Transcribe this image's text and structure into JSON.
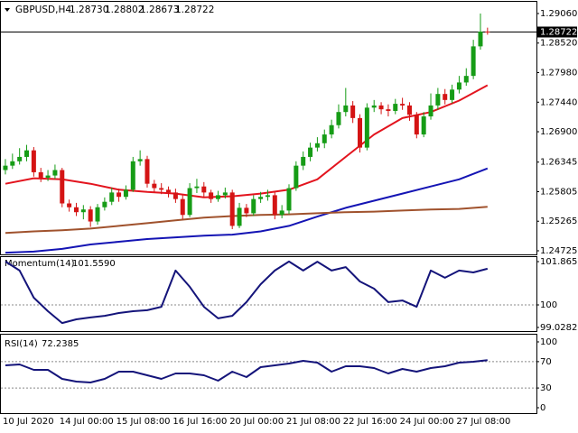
{
  "chart_data": [
    {
      "type": "candlestick",
      "title": "GBPUSD,H4",
      "ohlc_labels": [
        "1.28730",
        "1.28802",
        "1.28673",
        "1.28722"
      ],
      "categories": [
        "10 Jul 2020",
        null,
        null,
        null,
        null,
        null,
        null,
        null,
        "14 Jul 00:00",
        null,
        null,
        null,
        null,
        null,
        null,
        null,
        "15 Jul 08:00",
        null,
        null,
        null,
        null,
        null,
        null,
        null,
        "16 Jul 16:00",
        null,
        null,
        null,
        null,
        null,
        null,
        null,
        "20 Jul 00:00",
        null,
        null,
        null,
        null,
        null,
        null,
        null,
        "21 Jul 08:00",
        null,
        null,
        null,
        null,
        null,
        null,
        null,
        "22 Jul 16:00",
        null,
        null,
        null,
        null,
        null,
        null,
        null,
        "24 Jul 00:00",
        null,
        null,
        null,
        null,
        null,
        null,
        null,
        "27 Jul 08:00",
        null,
        null,
        null,
        null
      ],
      "open": [
        1.262,
        1.2628,
        1.2636,
        1.2644,
        1.2656,
        1.2616,
        1.2606,
        1.261,
        1.262,
        1.2559,
        1.2552,
        1.2543,
        1.2548,
        1.2526,
        1.2552,
        1.2562,
        1.2579,
        1.2571,
        1.2584,
        1.2636,
        1.264,
        1.2595,
        1.2587,
        1.2584,
        1.2579,
        1.2567,
        1.2538,
        1.2587,
        1.259,
        1.2579,
        1.2567,
        1.2574,
        1.2579,
        1.2518,
        1.2551,
        1.2541,
        1.2567,
        1.2571,
        1.2574,
        1.2538,
        1.2546,
        1.2587,
        1.2628,
        1.2644,
        1.2661,
        1.2669,
        1.2685,
        1.2702,
        1.2726,
        1.2738,
        1.2715,
        1.2661,
        1.2734,
        1.2738,
        1.2731,
        1.2728,
        1.2741,
        1.2738,
        1.2721,
        1.2685,
        1.2718,
        1.2738,
        1.2759,
        1.2748,
        1.2767,
        1.278,
        1.2792,
        1.2846,
        1.2873
      ],
      "high": [
        1.264,
        1.265,
        1.266,
        1.2666,
        1.2662,
        1.2624,
        1.262,
        1.263,
        1.2624,
        1.2566,
        1.256,
        1.2556,
        1.2554,
        1.2558,
        1.257,
        1.2588,
        1.2586,
        1.2592,
        1.2644,
        1.2656,
        1.2646,
        1.2602,
        1.2596,
        1.259,
        1.2586,
        1.2574,
        1.2596,
        1.2604,
        1.2598,
        1.2584,
        1.2582,
        1.2588,
        1.2584,
        1.256,
        1.2558,
        1.2574,
        1.258,
        1.2584,
        1.258,
        1.2556,
        1.2594,
        1.2636,
        1.2654,
        1.267,
        1.268,
        1.2694,
        1.2712,
        1.274,
        1.277,
        1.2746,
        1.2722,
        1.2742,
        1.2748,
        1.2744,
        1.274,
        1.275,
        1.2752,
        1.2744,
        1.2726,
        1.2726,
        1.276,
        1.277,
        1.2768,
        1.2776,
        1.2792,
        1.2806,
        1.2858,
        1.2906,
        1.28802
      ],
      "low": [
        1.2612,
        1.2622,
        1.263,
        1.2636,
        1.2608,
        1.2598,
        1.26,
        1.2604,
        1.2552,
        1.2544,
        1.2536,
        1.253,
        1.2516,
        1.252,
        1.2546,
        1.2556,
        1.2562,
        1.2566,
        1.258,
        1.2628,
        1.2588,
        1.258,
        1.2576,
        1.257,
        1.256,
        1.253,
        1.2534,
        1.2578,
        1.257,
        1.256,
        1.2562,
        1.2568,
        1.2512,
        1.2514,
        1.2534,
        1.2536,
        1.256,
        1.2564,
        1.253,
        1.2532,
        1.254,
        1.2582,
        1.262,
        1.2636,
        1.2654,
        1.266,
        1.2678,
        1.2696,
        1.2718,
        1.2706,
        1.2652,
        1.2656,
        1.2726,
        1.2722,
        1.2718,
        1.2722,
        1.273,
        1.271,
        1.2678,
        1.268,
        1.2712,
        1.273,
        1.274,
        1.2742,
        1.276,
        1.2774,
        1.2786,
        1.284,
        1.28673
      ],
      "close": [
        1.2628,
        1.2636,
        1.2644,
        1.2656,
        1.2616,
        1.2606,
        1.261,
        1.262,
        1.2559,
        1.2552,
        1.2543,
        1.2548,
        1.2526,
        1.2552,
        1.2562,
        1.2579,
        1.2571,
        1.2584,
        1.2636,
        1.264,
        1.2595,
        1.2587,
        1.2584,
        1.2579,
        1.2567,
        1.2538,
        1.2587,
        1.259,
        1.2579,
        1.2567,
        1.2574,
        1.2579,
        1.2518,
        1.2551,
        1.2541,
        1.2567,
        1.2571,
        1.2574,
        1.2538,
        1.2546,
        1.2587,
        1.2628,
        1.2644,
        1.2661,
        1.2669,
        1.2685,
        1.2702,
        1.2726,
        1.2738,
        1.2715,
        1.2661,
        1.2734,
        1.2738,
        1.2731,
        1.2728,
        1.2741,
        1.2738,
        1.2721,
        1.2685,
        1.2718,
        1.2738,
        1.2759,
        1.2748,
        1.2767,
        1.278,
        1.2792,
        1.2846,
        1.2873,
        1.28722
      ],
      "up_color": "#169c16",
      "down_color": "#d41414",
      "series": [
        {
          "color": "#e3141e",
          "x": [
            0,
            4,
            8,
            12,
            16,
            20,
            24,
            28,
            32,
            36,
            40,
            44,
            48,
            52,
            56,
            60,
            64,
            68
          ],
          "values": [
            1.2595,
            1.2605,
            1.2603,
            1.2595,
            1.2584,
            1.258,
            1.2577,
            1.257,
            1.2572,
            1.2577,
            1.2584,
            1.2603,
            1.2644,
            1.2685,
            1.2715,
            1.2726,
            1.2747,
            1.2775
          ]
        },
        {
          "color": "#1414b4",
          "x": [
            0,
            4,
            8,
            12,
            16,
            20,
            24,
            28,
            32,
            36,
            40,
            44,
            48,
            52,
            56,
            60,
            64,
            68
          ],
          "values": [
            1.2469,
            1.2471,
            1.2476,
            1.2484,
            1.2489,
            1.2494,
            1.2497,
            1.25,
            1.2502,
            1.2508,
            1.2518,
            1.2535,
            1.2551,
            1.2564,
            1.2577,
            1.259,
            1.2603,
            1.2623
          ]
        },
        {
          "color": "#a0522d",
          "x": [
            0,
            4,
            8,
            12,
            16,
            20,
            24,
            28,
            32,
            36,
            40,
            44,
            48,
            52,
            56,
            60,
            64,
            68
          ],
          "values": [
            1.2505,
            1.2508,
            1.251,
            1.2513,
            1.2518,
            1.2523,
            1.2528,
            1.2533,
            1.2536,
            1.2538,
            1.2539,
            1.2541,
            1.2543,
            1.2544,
            1.2546,
            1.2548,
            1.2549,
            1.2553
          ]
        }
      ],
      "last_price": {
        "value": 1.28722,
        "label": "1.28722"
      },
      "xlim": [
        -0.76,
        74.9
      ],
      "ylim": [
        1.24659,
        1.29274
      ],
      "yticks": [
        {
          "value": 1.2906,
          "label": "1.29060"
        },
        {
          "value": 1.2852,
          "label": "1.28520"
        },
        {
          "value": 1.2798,
          "label": "1.27980"
        },
        {
          "value": 1.2744,
          "label": "1.27440"
        },
        {
          "value": 1.269,
          "label": "1.26900"
        },
        {
          "value": 1.26345,
          "label": "1.26345"
        },
        {
          "value": 1.25805,
          "label": "1.25805"
        },
        {
          "value": 1.25265,
          "label": "1.25265"
        },
        {
          "value": 1.24725,
          "label": "1.24725"
        }
      ]
    },
    {
      "type": "line",
      "title": "Momentum(14)",
      "current_label": "101.5590",
      "color": "#14147a",
      "x": [
        0,
        2,
        4,
        6,
        8,
        10,
        12,
        14,
        16,
        18,
        20,
        22,
        24,
        26,
        28,
        30,
        32,
        34,
        36,
        38,
        40,
        42,
        44,
        46,
        48,
        50,
        52,
        54,
        56,
        58,
        60,
        62,
        64,
        66,
        68
      ],
      "values": [
        101.87,
        101.48,
        100.31,
        99.73,
        99.22,
        99.38,
        99.46,
        99.53,
        99.65,
        99.73,
        99.77,
        99.92,
        101.48,
        100.78,
        99.92,
        99.42,
        99.53,
        100.12,
        100.89,
        101.48,
        101.87,
        101.48,
        101.86,
        101.48,
        101.63,
        101.01,
        100.7,
        100.12,
        100.19,
        99.92,
        101.48,
        101.17,
        101.48,
        101.4,
        101.559
      ],
      "levels": [
        100
      ],
      "xlim": [
        -0.76,
        74.9
      ],
      "ylim": [
        98.873,
        102.099
      ],
      "yticks": [
        101.8652,
        100,
        99.0282
      ]
    },
    {
      "type": "line",
      "title": "RSI(14)",
      "current_label": "72.2385",
      "color": "#14147a",
      "x": [
        0,
        2,
        4,
        6,
        8,
        10,
        12,
        14,
        16,
        18,
        20,
        22,
        24,
        26,
        28,
        30,
        32,
        34,
        36,
        38,
        40,
        42,
        44,
        46,
        48,
        50,
        52,
        54,
        56,
        58,
        60,
        62,
        64,
        66,
        68
      ],
      "values": [
        64.4,
        65.8,
        57.5,
        57.5,
        43.8,
        39.7,
        38.4,
        43.8,
        54.8,
        54.8,
        49.3,
        43.8,
        52.1,
        52.1,
        49.3,
        41.1,
        54.8,
        46.6,
        61.6,
        64.4,
        67.1,
        71.2,
        68.5,
        54.8,
        63.0,
        63.0,
        60.3,
        52.1,
        58.9,
        54.8,
        60.3,
        63.0,
        68.5,
        69.9,
        72.2385
      ],
      "levels": [
        70,
        30
      ],
      "xlim": [
        -0.76,
        74.9
      ],
      "ylim": [
        -8.2,
        112.3
      ],
      "yticks": [
        100,
        70,
        30,
        0
      ]
    }
  ]
}
